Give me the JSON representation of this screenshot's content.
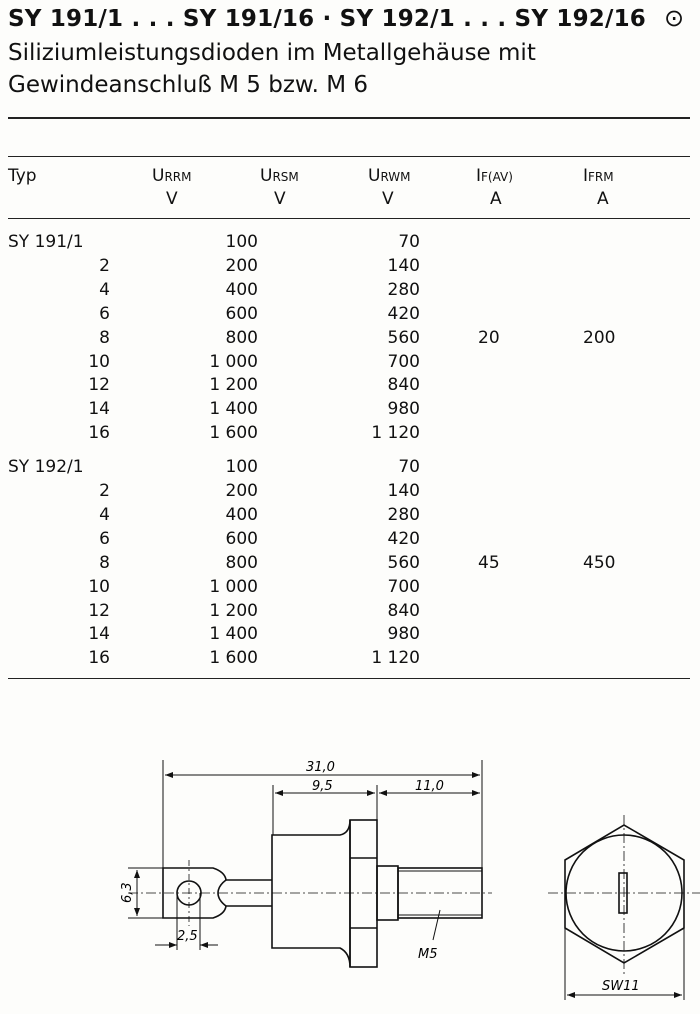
{
  "title": "SY 191/1 . . . SY 191/16 · SY 192/1 . . . SY 192/16",
  "title_symbol": "⊙",
  "subtitle_lines": [
    "Siliziumleistungsdioden im Metallgehäuse mit",
    "Gewindeanschluß M 5 bzw. M 6"
  ],
  "table": {
    "headers": [
      {
        "sym": "U",
        "sub": "RRM",
        "unit": "V"
      },
      {
        "sym": "U",
        "sub": "RSM",
        "unit": "V"
      },
      {
        "sym": "U",
        "sub": "RWM",
        "unit": "V"
      },
      {
        "sym": "I",
        "sub": "F(AV)",
        "unit": "A"
      },
      {
        "sym": "I",
        "sub": "FRM",
        "unit": "A"
      }
    ],
    "typ_label": "Typ",
    "groups": [
      {
        "if_av": "20",
        "ifrm": "200",
        "rows": [
          [
            "SY 191/1",
            "100",
            "70"
          ],
          [
            "2",
            "200",
            "140"
          ],
          [
            "4",
            "400",
            "280"
          ],
          [
            "6",
            "600",
            "420"
          ],
          [
            "8",
            "800",
            "560"
          ],
          [
            "10",
            "1 000",
            "700"
          ],
          [
            "12",
            "1 200",
            "840"
          ],
          [
            "14",
            "1 400",
            "980"
          ],
          [
            "16",
            "1 600",
            "1 120"
          ]
        ]
      },
      {
        "if_av": "45",
        "ifrm": "450",
        "rows": [
          [
            "SY 192/1",
            "100",
            "70"
          ],
          [
            "2",
            "200",
            "140"
          ],
          [
            "4",
            "400",
            "280"
          ],
          [
            "6",
            "600",
            "420"
          ],
          [
            "8",
            "800",
            "560"
          ],
          [
            "10",
            "1 000",
            "700"
          ],
          [
            "12",
            "1 200",
            "840"
          ],
          [
            "14",
            "1 400",
            "980"
          ],
          [
            "16",
            "1 600",
            "1 120"
          ]
        ]
      }
    ]
  },
  "drawing": {
    "dim_total": "31,0",
    "dim_body": "9,5",
    "dim_thread": "11,0",
    "dim_height": "6,3",
    "dim_hole": "2,5",
    "thread": "M5",
    "wrench": "SW11"
  }
}
